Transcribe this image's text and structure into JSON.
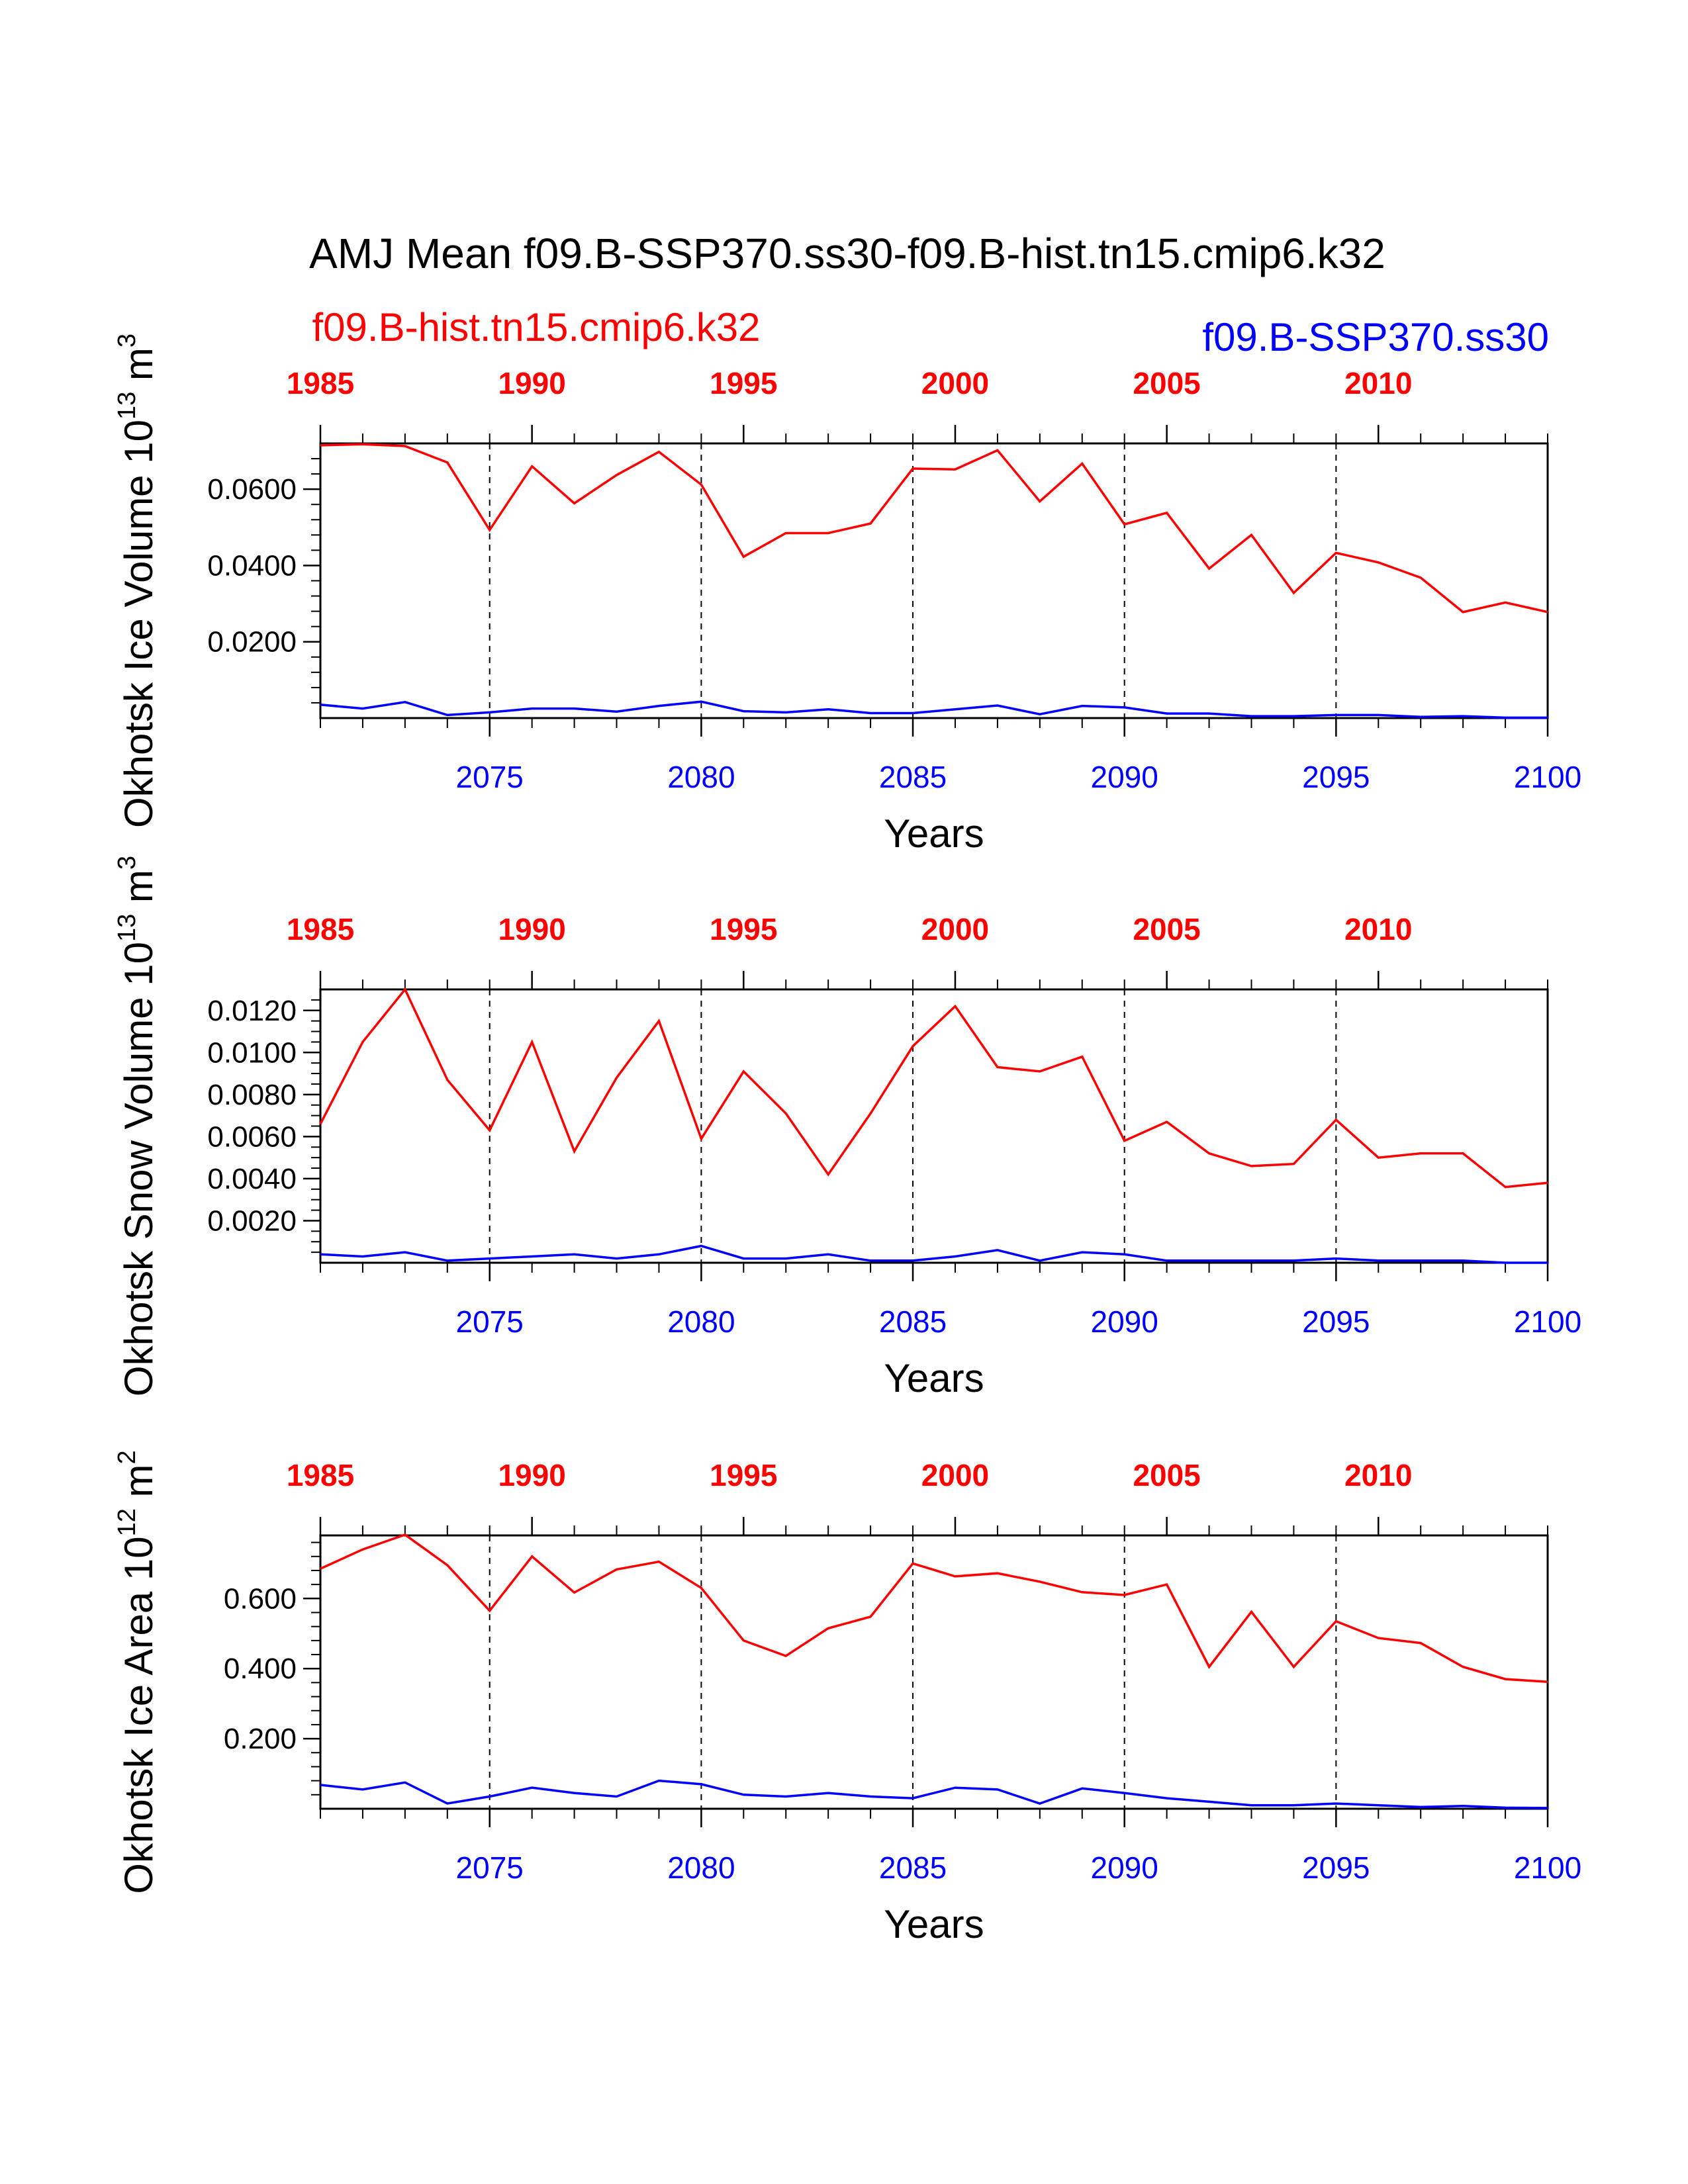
{
  "page": {
    "title": "AMJ Mean f09.B-SSP370.ss30-f09.B-hist.tn15.cmip6.k32",
    "legend_hist": "f09.B-hist.tn15.cmip6.k32",
    "legend_ssp": "f09.B-SSP370.ss30"
  },
  "colors": {
    "hist": "#ff0000",
    "ssp": "#0000ff",
    "axes": "#000000"
  },
  "chart_data": [
    {
      "type": "line",
      "ylabel": "Okhotsk Ice Volume 10",
      "ylabel_exp": "13",
      "ylabel_unit": " m",
      "ylabel_unit_exp": "3",
      "xlabel": "Years",
      "xlim": [
        2071,
        2100
      ],
      "ylim": [
        0,
        0.072
      ],
      "yticks": [
        0.02,
        0.04,
        0.06
      ],
      "ytick_labels": [
        "0.0200",
        "0.0400",
        "0.0600"
      ],
      "yminor_step": 0.004,
      "x_bottom_ticks": [
        2075,
        2080,
        2085,
        2090,
        2095,
        2100
      ],
      "x_bottom_labels": [
        "2075",
        "2080",
        "2085",
        "2090",
        "2095",
        "2100"
      ],
      "x_top_ticks": [
        1985,
        1990,
        1995,
        2000,
        2005,
        2010
      ],
      "x_top_labels": [
        "1985",
        "1990",
        "1995",
        "2000",
        "2005",
        "2010"
      ],
      "x": [
        2071,
        2072,
        2073,
        2074,
        2075,
        2076,
        2077,
        2078,
        2079,
        2080,
        2081,
        2082,
        2083,
        2084,
        2085,
        2086,
        2087,
        2088,
        2089,
        2090,
        2091,
        2092,
        2093,
        2094,
        2095,
        2096,
        2097,
        2098,
        2099,
        2100
      ],
      "series": [
        {
          "name": "f09.B-hist.tn15.cmip6.k32",
          "axis": "top",
          "x": [
            1985,
            1986,
            1987,
            1988,
            1989,
            1990,
            1991,
            1992,
            1993,
            1994,
            1995,
            1996,
            1997,
            1998,
            1999,
            2000,
            2001,
            2002,
            2003,
            2004,
            2005,
            2006,
            2007,
            2008,
            2009,
            2010,
            2011,
            2012,
            2013,
            2014
          ],
          "values": [
            0.0715,
            0.0718,
            0.0713,
            0.067,
            0.0493,
            0.066,
            0.0563,
            0.0637,
            0.0698,
            0.0612,
            0.0423,
            0.0485,
            0.0485,
            0.051,
            0.0654,
            0.0652,
            0.0702,
            0.0568,
            0.0667,
            0.0508,
            0.0538,
            0.0392,
            0.048,
            0.0328,
            0.0433,
            0.0408,
            0.0368,
            0.0278,
            0.0303,
            0.0278
          ]
        },
        {
          "name": "f09.B-SSP370.ss30",
          "axis": "bottom",
          "values": [
            0.0035,
            0.0025,
            0.0042,
            0.0008,
            0.0015,
            0.0025,
            0.0025,
            0.0017,
            0.0032,
            0.0043,
            0.0018,
            0.0015,
            0.0023,
            0.0013,
            0.0013,
            0.0023,
            0.0033,
            0.001,
            0.0032,
            0.0028,
            0.0012,
            0.0012,
            0.0005,
            0.0005,
            0.0008,
            0.0008,
            0.0003,
            0.0005,
            0.0001,
            0.0001
          ]
        }
      ]
    },
    {
      "type": "line",
      "ylabel": "Okhotsk Snow Volume 10",
      "ylabel_exp": "13",
      "ylabel_unit": " m",
      "ylabel_unit_exp": "3",
      "xlabel": "Years",
      "xlim": [
        2071,
        2100
      ],
      "ylim": [
        0,
        0.013
      ],
      "yticks": [
        0.002,
        0.004,
        0.006,
        0.008,
        0.01,
        0.012
      ],
      "ytick_labels": [
        "0.0020",
        "0.0040",
        "0.0060",
        "0.0080",
        "0.0100",
        "0.0120"
      ],
      "yminor_step": 0.0005,
      "x_bottom_ticks": [
        2075,
        2080,
        2085,
        2090,
        2095,
        2100
      ],
      "x_bottom_labels": [
        "2075",
        "2080",
        "2085",
        "2090",
        "2095",
        "2100"
      ],
      "x_top_ticks": [
        1985,
        1990,
        1995,
        2000,
        2005,
        2010
      ],
      "x_top_labels": [
        "1985",
        "1990",
        "1995",
        "2000",
        "2005",
        "2010"
      ],
      "x": [
        2071,
        2072,
        2073,
        2074,
        2075,
        2076,
        2077,
        2078,
        2079,
        2080,
        2081,
        2082,
        2083,
        2084,
        2085,
        2086,
        2087,
        2088,
        2089,
        2090,
        2091,
        2092,
        2093,
        2094,
        2095,
        2096,
        2097,
        2098,
        2099,
        2100
      ],
      "series": [
        {
          "name": "f09.B-hist.tn15.cmip6.k32",
          "axis": "top",
          "x": [
            1985,
            1986,
            1987,
            1988,
            1989,
            1990,
            1991,
            1992,
            1993,
            1994,
            1995,
            1996,
            1997,
            1998,
            1999,
            2000,
            2001,
            2002,
            2003,
            2004,
            2005,
            2006,
            2007,
            2008,
            2009,
            2010,
            2011,
            2012,
            2013,
            2014
          ],
          "values": [
            0.0066,
            0.0105,
            0.013,
            0.0087,
            0.0063,
            0.0105,
            0.0053,
            0.0088,
            0.0115,
            0.0059,
            0.0091,
            0.0071,
            0.0042,
            0.0071,
            0.0103,
            0.0122,
            0.0093,
            0.0091,
            0.0098,
            0.0058,
            0.0067,
            0.0052,
            0.0046,
            0.0047,
            0.0068,
            0.005,
            0.0052,
            0.0052,
            0.0036,
            0.0038
          ]
        },
        {
          "name": "f09.B-SSP370.ss30",
          "axis": "bottom",
          "values": [
            0.0004,
            0.0003,
            0.0005,
            0.0001,
            0.0002,
            0.0003,
            0.0004,
            0.0002,
            0.0004,
            0.0008,
            0.0002,
            0.0002,
            0.0004,
            0.0001,
            0.0001,
            0.0003,
            0.0006,
            0.0001,
            0.0005,
            0.0004,
            0.0001,
            0.0001,
            0.0001,
            0.0001,
            0.0002,
            0.0001,
            0.0001,
            0.0001,
            0.0,
            0.0
          ]
        }
      ]
    },
    {
      "type": "line",
      "ylabel": "Okhotsk Ice Area 10",
      "ylabel_exp": "12",
      "ylabel_unit": " m",
      "ylabel_unit_exp": "2",
      "xlabel": "Years",
      "xlim": [
        2071,
        2100
      ],
      "ylim": [
        0,
        0.78
      ],
      "yticks": [
        0.2,
        0.4,
        0.6
      ],
      "ytick_labels": [
        "0.200",
        "0.400",
        "0.600"
      ],
      "yminor_step": 0.04,
      "x_bottom_ticks": [
        2075,
        2080,
        2085,
        2090,
        2095,
        2100
      ],
      "x_bottom_labels": [
        "2075",
        "2080",
        "2085",
        "2090",
        "2095",
        "2100"
      ],
      "x_top_ticks": [
        1985,
        1990,
        1995,
        2000,
        2005,
        2010
      ],
      "x_top_labels": [
        "1985",
        "1990",
        "1995",
        "2000",
        "2005",
        "2010"
      ],
      "x": [
        2071,
        2072,
        2073,
        2074,
        2075,
        2076,
        2077,
        2078,
        2079,
        2080,
        2081,
        2082,
        2083,
        2084,
        2085,
        2086,
        2087,
        2088,
        2089,
        2090,
        2091,
        2092,
        2093,
        2094,
        2095,
        2096,
        2097,
        2098,
        2099,
        2100
      ],
      "series": [
        {
          "name": "f09.B-hist.tn15.cmip6.k32",
          "axis": "top",
          "x": [
            1985,
            1986,
            1987,
            1988,
            1989,
            1990,
            1991,
            1992,
            1993,
            1994,
            1995,
            1996,
            1997,
            1998,
            1999,
            2000,
            2001,
            2002,
            2003,
            2004,
            2005,
            2006,
            2007,
            2008,
            2009,
            2010,
            2011,
            2012,
            2013,
            2014
          ],
          "values": [
            0.685,
            0.74,
            0.782,
            0.695,
            0.565,
            0.72,
            0.617,
            0.683,
            0.705,
            0.63,
            0.48,
            0.436,
            0.515,
            0.548,
            0.7,
            0.663,
            0.672,
            0.648,
            0.618,
            0.61,
            0.64,
            0.405,
            0.562,
            0.405,
            0.535,
            0.487,
            0.473,
            0.405,
            0.37,
            0.362
          ]
        },
        {
          "name": "f09.B-SSP370.ss30",
          "axis": "bottom",
          "values": [
            0.068,
            0.055,
            0.075,
            0.015,
            0.035,
            0.06,
            0.045,
            0.035,
            0.08,
            0.07,
            0.04,
            0.035,
            0.045,
            0.035,
            0.03,
            0.06,
            0.055,
            0.015,
            0.058,
            0.045,
            0.03,
            0.02,
            0.01,
            0.01,
            0.015,
            0.01,
            0.005,
            0.008,
            0.003,
            0.002
          ]
        }
      ]
    }
  ]
}
